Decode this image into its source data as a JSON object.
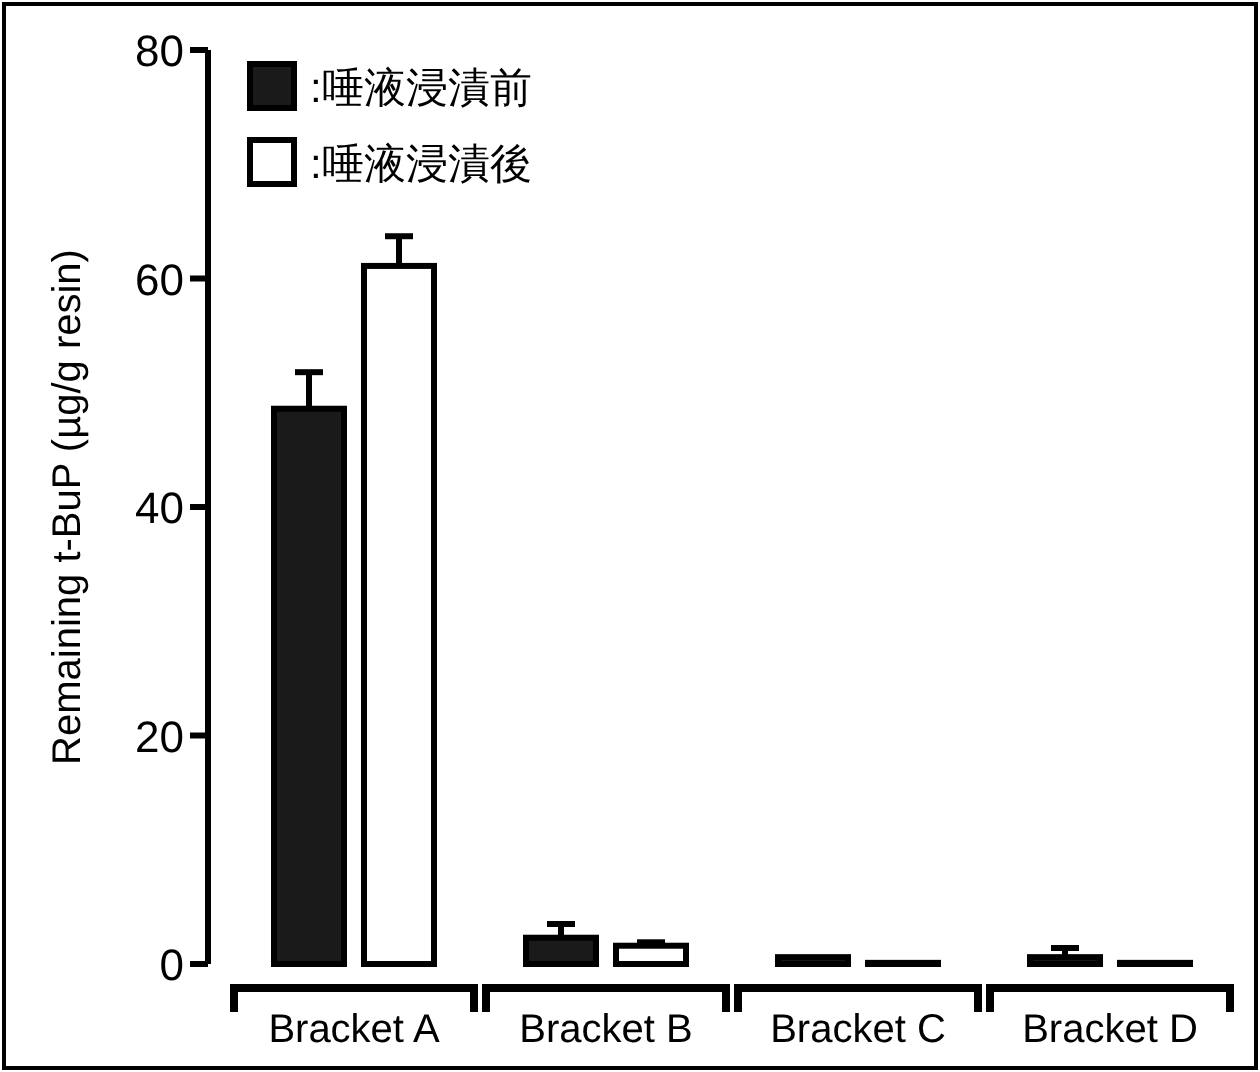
{
  "chart_data": {
    "type": "bar",
    "ylabel": "Remaining t-BuP (µg/g resin)",
    "categories": [
      "Bracket A",
      "Bracket B",
      "Bracket C",
      "Bracket D"
    ],
    "series": [
      {
        "name": ":唾液浸漬前",
        "color": "#1a1a1a",
        "values": [
          48.6,
          2.3,
          0.6,
          0.6
        ],
        "errors": [
          3.2,
          1.2,
          null,
          0.8
        ]
      },
      {
        "name": ":唾液浸漬後",
        "color": "#ffffff",
        "values": [
          61.1,
          1.6,
          0.1,
          0.1
        ],
        "errors": [
          2.6,
          0.3,
          null,
          null
        ]
      }
    ],
    "ylim": [
      0,
      80
    ],
    "yticks": [
      0,
      20,
      40,
      60,
      80
    ],
    "grid": false,
    "legend": "top left"
  }
}
